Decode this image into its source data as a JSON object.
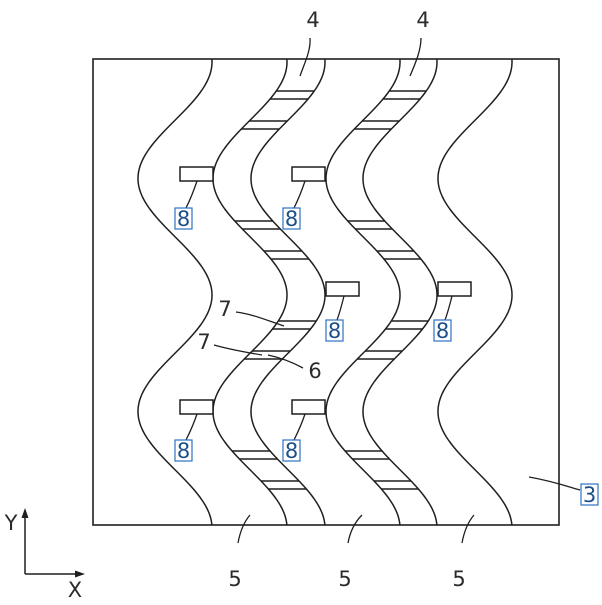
{
  "figure": {
    "stroke_color": "#1f1f1f",
    "label_color": "#2b2b2b",
    "boxed_label_color": "#1c4f8a",
    "boxed_label_frame": "#2d72c4"
  },
  "labels": {
    "substrate": "3",
    "first_channel": "4",
    "second_channel": "5",
    "connector": "6",
    "bridge": "7",
    "pad": "8"
  },
  "axes": {
    "x": "X",
    "y": "Y"
  }
}
